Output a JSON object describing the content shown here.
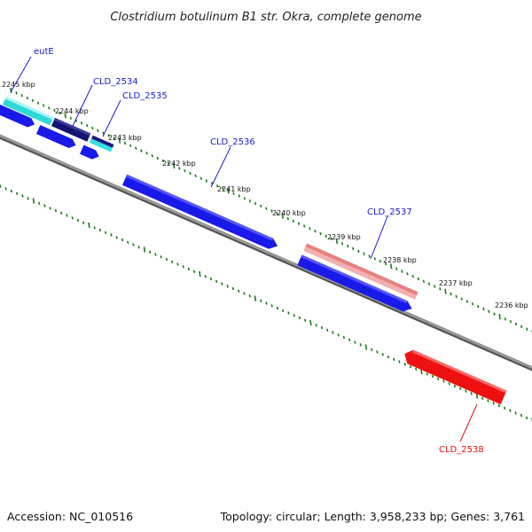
{
  "title": "Clostridium botulinum B1 str. Okra, complete genome",
  "footer": {
    "accession": "Accession: NC_010516",
    "summary": "Topology: circular; Length: 3,958,233 bp; Genes: 3,761"
  },
  "ruler_labels": [
    "2245 kbp",
    "2244 kbp",
    "2243 kbp",
    "2242 kbp",
    "2241 kbp",
    "2240 kbp",
    "2239 kbp",
    "2238 kbp",
    "2237 kbp",
    "2236 kbp"
  ],
  "genes": {
    "eutE": "eutE",
    "cld2534": "CLD_2534",
    "cld2535": "CLD_2535",
    "cld2536": "CLD_2536",
    "cld2537": "CLD_2537",
    "cld2538": "CLD_2538"
  },
  "colors": {
    "backbone": "#808080",
    "ticks": "#1a7a1a",
    "cds_forward": "#1a1aff",
    "cds_forward_dark": "#1a1a80",
    "cds_highlight_cyan": "#33e0e0",
    "cds_pink": "#e88080",
    "cds_red": "#ee1111",
    "label_blue": "#1a1acc",
    "label_red": "#dd1111"
  }
}
